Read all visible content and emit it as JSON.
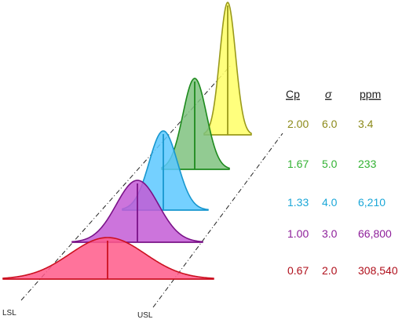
{
  "limit_labels": {
    "lower": "LSL",
    "upper": "USL"
  },
  "table": {
    "headers": {
      "cp": "Cp",
      "sigma": "σ",
      "ppm": "ppm"
    },
    "rows": [
      {
        "cp": "2.00",
        "sigma": "6.0",
        "ppm": "3.4",
        "color": "#8c8a1a"
      },
      {
        "cp": "1.67",
        "sigma": "5.0",
        "ppm": "233",
        "color": "#33b233"
      },
      {
        "cp": "1.33",
        "sigma": "4.0",
        "ppm": "6,210",
        "color": "#1ba7d8"
      },
      {
        "cp": "1.00",
        "sigma": "3.0",
        "ppm": "66,800",
        "color": "#8e1f9a"
      },
      {
        "cp": "0.67",
        "sigma": "2.0",
        "ppm": "308,540",
        "color": "#b0101c"
      }
    ]
  },
  "curves": [
    {
      "sigma_level": 6.0,
      "fill": "#ffff66",
      "stroke": "#9a9a1a"
    },
    {
      "sigma_level": 5.0,
      "fill": "#7fc27f",
      "stroke": "#1d8a1d"
    },
    {
      "sigma_level": 4.0,
      "fill": "#5cc8ff",
      "stroke": "#1797cf"
    },
    {
      "sigma_level": 3.0,
      "fill": "#c35cd6",
      "stroke": "#7a1288"
    },
    {
      "sigma_level": 2.0,
      "fill": "#ff5a8a",
      "stroke": "#cc1020"
    }
  ]
}
